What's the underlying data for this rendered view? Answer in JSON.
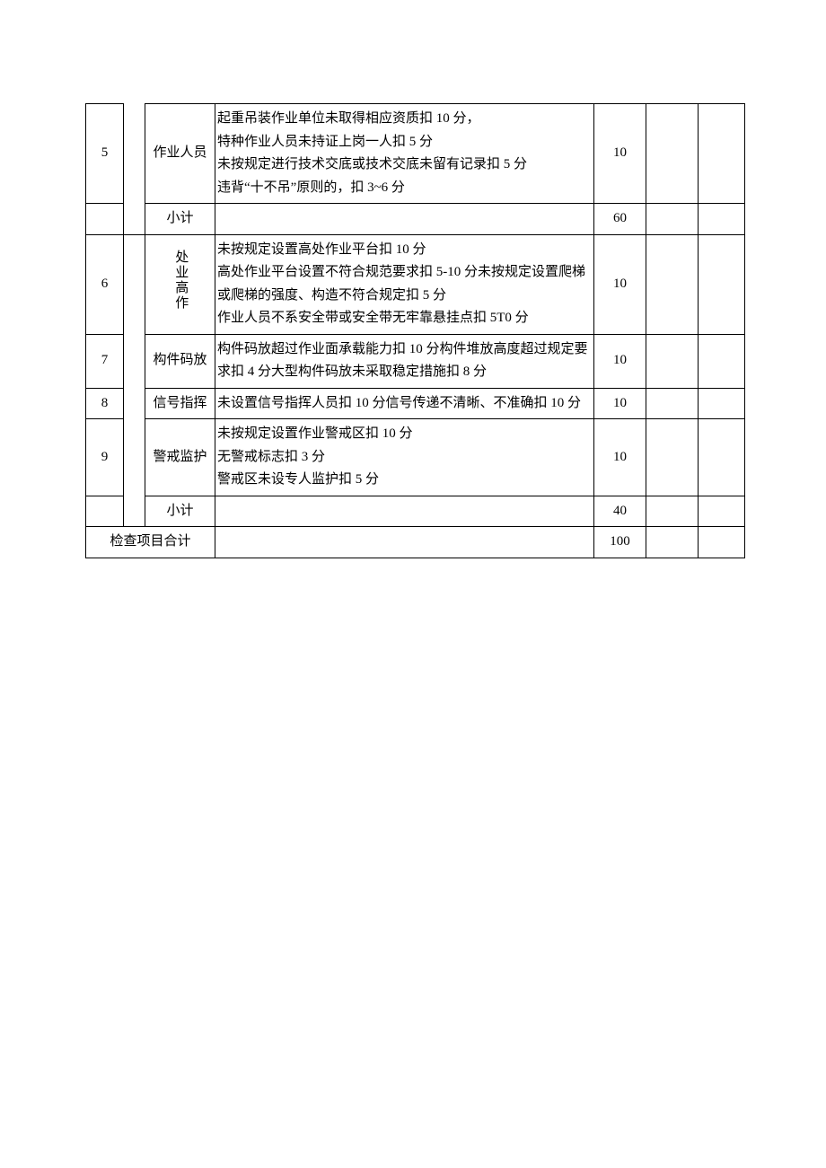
{
  "table": {
    "border_color": "#000000",
    "background_color": "#ffffff",
    "text_color": "#000000",
    "font_size_pt": 11,
    "col_widths_pct": [
      5.7,
      3.3,
      10.6,
      48.6,
      7.9,
      7.9,
      7.1
    ],
    "rows": [
      {
        "no": "5",
        "item": "作业人员",
        "desc": "起重吊装作业单位未取得相应资质扣 10 分，\n特种作业人员未持证上岗一人扣 5 分\n未按规定进行技术交底或技术交底未留有记录扣 5 分\n违背“十不吊”原则的，扣 3~6 分",
        "score": "10"
      },
      {
        "subtotal": true,
        "item": "小计",
        "score": "60"
      },
      {
        "no": "6",
        "category": "处业高作",
        "category_rowspan": 4,
        "desc": "未按规定设置高处作业平台扣 10 分\n高处作业平台设置不符合规范要求扣 5-10 分未按规定设置爬梯或爬梯的强度、构造不符合规定扣 5 分\n作业人员不系安全带或安全带无牢靠悬挂点扣 5T0 分",
        "score": "10"
      },
      {
        "no": "7",
        "item": "构件码放",
        "desc": "构件码放超过作业面承载能力扣 10 分构件堆放高度超过规定要求扣 4 分大型构件码放未采取稳定措施扣 8 分",
        "score": "10"
      },
      {
        "no": "8",
        "item": "信号指挥",
        "desc": "未设置信号指挥人员扣 10 分信号传递不清晰、不准确扣 10 分",
        "score": "10"
      },
      {
        "no": "9",
        "item": "警戒监护",
        "desc": "未按规定设置作业警戒区扣 10 分\n无警戒标志扣 3 分\n警戒区未设专人监护扣 5 分",
        "score": "10"
      },
      {
        "subtotal": true,
        "item": "小计",
        "score": "40"
      },
      {
        "total": true,
        "item": "检查项目合计",
        "score": "100"
      }
    ]
  }
}
